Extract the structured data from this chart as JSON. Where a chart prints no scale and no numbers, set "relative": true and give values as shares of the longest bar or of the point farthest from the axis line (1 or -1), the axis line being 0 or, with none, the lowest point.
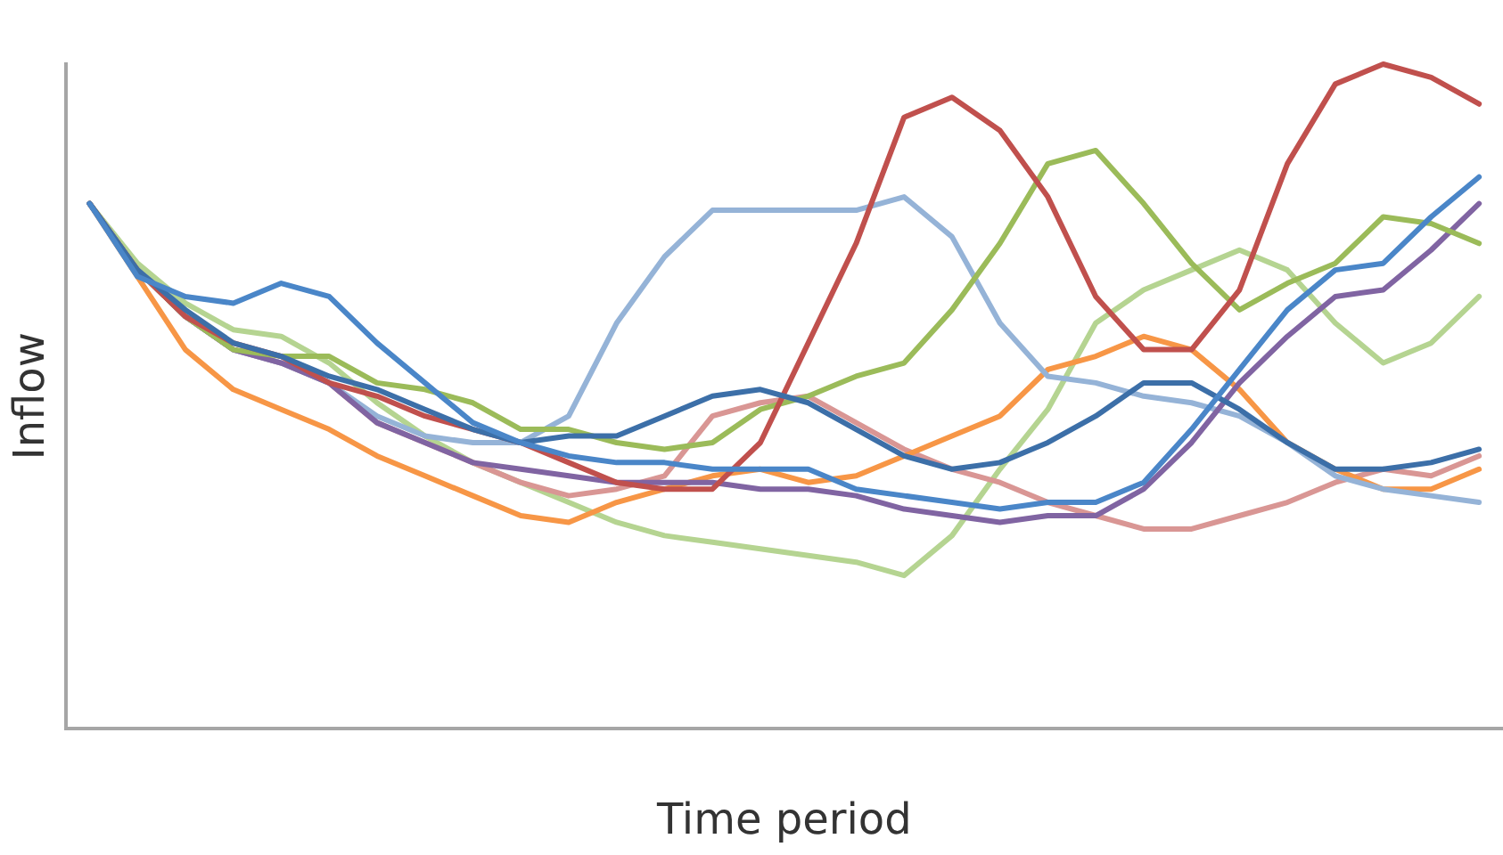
{
  "chart_data": {
    "type": "line",
    "xlabel": "Time period",
    "ylabel": "Inflow",
    "relative": true,
    "grid": false,
    "legend": false,
    "marker": "none",
    "line_style": "solid",
    "categories": [
      null,
      null,
      null,
      null,
      null,
      null,
      null,
      null,
      null,
      null,
      null,
      null,
      null,
      null,
      null,
      null,
      null,
      null,
      null,
      null,
      null,
      null,
      null,
      null,
      null,
      null,
      null,
      null,
      null,
      null
    ],
    "series": [
      {
        "color": "#4a86c8",
        "values": [
          0.79,
          0.68,
          0.65,
          0.64,
          0.67,
          0.65,
          0.58,
          0.52,
          0.46,
          0.43,
          0.41,
          0.4,
          0.4,
          0.39,
          0.39,
          0.39,
          0.36,
          0.35,
          0.34,
          0.33,
          0.34,
          0.34,
          0.37,
          0.45,
          0.54,
          0.63,
          0.69,
          0.7,
          0.77,
          0.83
        ]
      },
      {
        "color": "#3c6fa8",
        "values": [
          0.79,
          0.69,
          0.63,
          0.58,
          0.56,
          0.53,
          0.51,
          0.48,
          0.45,
          0.43,
          0.44,
          0.44,
          0.47,
          0.5,
          0.51,
          0.49,
          0.45,
          0.41,
          0.39,
          0.4,
          0.43,
          0.47,
          0.52,
          0.52,
          0.48,
          0.43,
          0.39,
          0.39,
          0.4,
          0.42
        ]
      },
      {
        "color": "#c0504d",
        "values": [
          0.79,
          0.69,
          0.62,
          0.58,
          0.56,
          0.52,
          0.5,
          0.47,
          0.45,
          0.43,
          0.4,
          0.37,
          0.36,
          0.36,
          0.43,
          0.58,
          0.73,
          0.92,
          0.95,
          0.9,
          0.8,
          0.65,
          0.57,
          0.57,
          0.66,
          0.85,
          0.97,
          1.0,
          0.98,
          0.94
        ]
      },
      {
        "color": "#9bbb59",
        "values": [
          0.79,
          0.69,
          0.62,
          0.57,
          0.56,
          0.56,
          0.52,
          0.51,
          0.49,
          0.45,
          0.45,
          0.43,
          0.42,
          0.43,
          0.48,
          0.5,
          0.53,
          0.55,
          0.63,
          0.73,
          0.85,
          0.87,
          0.79,
          0.7,
          0.63,
          0.67,
          0.7,
          0.77,
          0.76,
          0.73
        ]
      },
      {
        "color": "#8064a2",
        "values": [
          0.79,
          0.69,
          0.62,
          0.57,
          0.55,
          0.52,
          0.46,
          0.43,
          0.4,
          0.39,
          0.38,
          0.37,
          0.37,
          0.37,
          0.36,
          0.36,
          0.35,
          0.33,
          0.32,
          0.31,
          0.32,
          0.32,
          0.36,
          0.43,
          0.52,
          0.59,
          0.65,
          0.66,
          0.72,
          0.79
        ]
      },
      {
        "color": "#95b3d7",
        "values": [
          0.79,
          0.69,
          0.62,
          0.57,
          0.55,
          0.52,
          0.47,
          0.44,
          0.43,
          0.43,
          0.47,
          0.61,
          0.71,
          0.78,
          0.78,
          0.78,
          0.78,
          0.8,
          0.74,
          0.61,
          0.53,
          0.52,
          0.5,
          0.49,
          0.47,
          0.43,
          0.38,
          0.36,
          0.35,
          0.34
        ]
      },
      {
        "color": "#f79646",
        "values": [
          0.79,
          0.68,
          0.57,
          0.51,
          0.48,
          0.45,
          0.41,
          0.38,
          0.35,
          0.32,
          0.31,
          0.34,
          0.36,
          0.38,
          0.39,
          0.37,
          0.38,
          0.41,
          0.44,
          0.47,
          0.54,
          0.56,
          0.59,
          0.57,
          0.51,
          0.43,
          0.39,
          0.36,
          0.36,
          0.39
        ]
      },
      {
        "color": "#d99694",
        "values": [
          0.79,
          0.69,
          0.62,
          0.57,
          0.55,
          0.52,
          0.46,
          0.43,
          0.4,
          0.37,
          0.35,
          0.36,
          0.38,
          0.47,
          0.49,
          0.5,
          0.46,
          0.42,
          0.39,
          0.37,
          0.34,
          0.32,
          0.3,
          0.3,
          0.32,
          0.34,
          0.37,
          0.39,
          0.38,
          0.41
        ]
      },
      {
        "color": "#b5d491",
        "values": [
          0.79,
          0.7,
          0.64,
          0.6,
          0.59,
          0.55,
          0.49,
          0.44,
          0.4,
          0.37,
          0.34,
          0.31,
          0.29,
          0.28,
          0.27,
          0.26,
          0.25,
          0.23,
          0.29,
          0.39,
          0.48,
          0.61,
          0.66,
          0.69,
          0.72,
          0.69,
          0.61,
          0.55,
          0.58,
          0.65
        ]
      }
    ]
  }
}
